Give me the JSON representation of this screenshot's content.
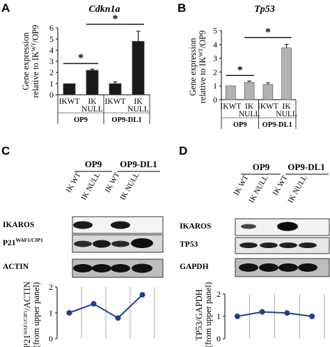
{
  "panels": {
    "A": {
      "label": "A",
      "chart_data": {
        "type": "bar",
        "title": "Cdkn1a",
        "ylabel_lines": [
          "Gene expression",
          "relative to IK",
          "WT",
          "/OP9"
        ],
        "ylim": [
          0,
          6
        ],
        "yticks": [
          "0",
          "1",
          "2",
          "3",
          "4",
          "5",
          "6"
        ],
        "categories": [
          "IKWT",
          "IK NULL",
          "IKWT",
          "IK NULL"
        ],
        "cat_lines": [
          [
            "IKWT"
          ],
          [
            "IK",
            "NULL"
          ],
          [
            "IKWT"
          ],
          [
            "IK",
            "NULL"
          ]
        ],
        "groups": [
          "OP9",
          "OP9-DL1"
        ],
        "values": [
          1.0,
          2.2,
          1.0,
          4.8
        ],
        "errors": [
          0.0,
          0.1,
          0.15,
          0.9
        ],
        "bar_color": "#1a1a1a",
        "significance": [
          "*",
          "*"
        ]
      }
    },
    "B": {
      "label": "B",
      "chart_data": {
        "type": "bar",
        "title": "Tp53",
        "ylabel_lines": [
          "Gene expression",
          "relative to IK",
          "WT",
          "/OP9"
        ],
        "ylim": [
          0,
          5
        ],
        "yticks": [
          "0",
          "1",
          "2",
          "3",
          "4",
          "5"
        ],
        "categories": [
          "IKWT",
          "IK NULL",
          "IKWT",
          "IK NULL"
        ],
        "cat_lines": [
          [
            "IKWT"
          ],
          [
            "IK",
            "NULL"
          ],
          [
            "IKWT"
          ],
          [
            "IK",
            "NULL"
          ]
        ],
        "groups": [
          "OP9",
          "OP9-DL1"
        ],
        "values": [
          1.0,
          1.25,
          1.1,
          3.75
        ],
        "errors": [
          0.0,
          0.1,
          0.12,
          0.25
        ],
        "bar_color": "#b0b4b4",
        "significance": [
          "*",
          "*"
        ]
      }
    },
    "C": {
      "label": "C",
      "group_headers": [
        "OP9",
        "OP9-DL1"
      ],
      "lanes": [
        "IK WT",
        "IK NULL",
        "IK WT",
        "IK NULL"
      ],
      "blot_labels": [
        "IKAROS",
        "P21",
        "WAF1/CIP1",
        "ACTIN"
      ],
      "ylabel_lines": [
        "P21",
        "WAF1/CIP1",
        "/ACTIN",
        "(from upper panel)"
      ],
      "chart_data": {
        "type": "line",
        "ylim": [
          0,
          2
        ],
        "yticks": [
          "0",
          "1",
          "2"
        ],
        "values": [
          1.0,
          1.35,
          0.8,
          1.7
        ],
        "color": "#1f3f8f"
      }
    },
    "D": {
      "label": "D",
      "group_headers": [
        "OP9",
        "OP9-DL1"
      ],
      "lanes": [
        "IK WT",
        "IK NULL",
        "IK WT",
        "IK NULL"
      ],
      "blot_labels": [
        "IKAROS",
        "TP53",
        "GAPDH"
      ],
      "ylabel_lines": [
        "TP53/GAPDH",
        "(from upper panel)"
      ],
      "chart_data": {
        "type": "line",
        "ylim": [
          0,
          2
        ],
        "yticks": [
          "0",
          "1",
          "2"
        ],
        "values": [
          1.0,
          1.2,
          1.15,
          1.0
        ],
        "color": "#1f3f8f"
      }
    }
  }
}
